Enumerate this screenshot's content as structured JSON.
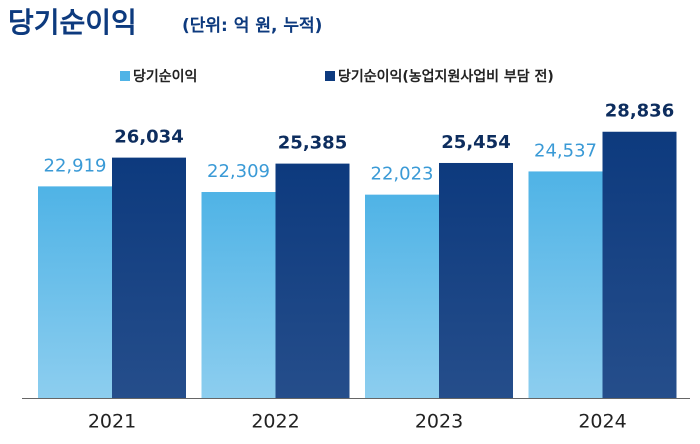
{
  "chart_data": {
    "type": "bar",
    "title": "당기순이익",
    "subtitle": "(단위: 억 원, 누적)",
    "categories": [
      "2021",
      "2022",
      "2023",
      "2024"
    ],
    "series": [
      {
        "name": "당기순이익",
        "color": "#4fb3e6",
        "values": [
          22919,
          22309,
          22023,
          24537
        ],
        "value_labels": [
          "22,919",
          "22,309",
          "22,023",
          "24,537"
        ]
      },
      {
        "name": "당기순이익(농업지원사업비 부담 전)",
        "color": "#0d3a7e",
        "values": [
          26034,
          25385,
          25454,
          28836
        ],
        "value_labels": [
          "26,034",
          "25,385",
          "25,454",
          "28,836"
        ]
      }
    ],
    "ylim": [
      0,
      30000
    ]
  }
}
